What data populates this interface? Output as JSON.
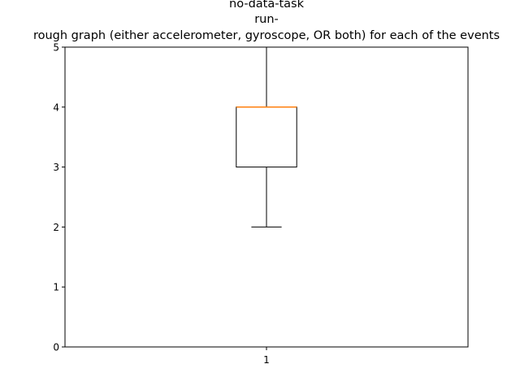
{
  "chart_data": {
    "type": "box",
    "title_lines": [
      "no-data-task",
      "run-",
      "rough graph (either accelerometer, gyroscope, OR both) for each of the events"
    ],
    "categories": [
      "1"
    ],
    "boxes": [
      {
        "category": "1",
        "whisker_low": 2,
        "q1": 3,
        "median": 4,
        "q3": 4,
        "whisker_high": 5
      }
    ],
    "yticks": [
      "0",
      "1",
      "2",
      "3",
      "4",
      "5"
    ],
    "ylim": [
      0,
      5
    ],
    "xlim": [
      0.5,
      1.5
    ],
    "grid": false,
    "colors": {
      "box": "#000000",
      "median": "#ff7f0e",
      "axes": "#000000",
      "background": "#ffffff"
    }
  }
}
